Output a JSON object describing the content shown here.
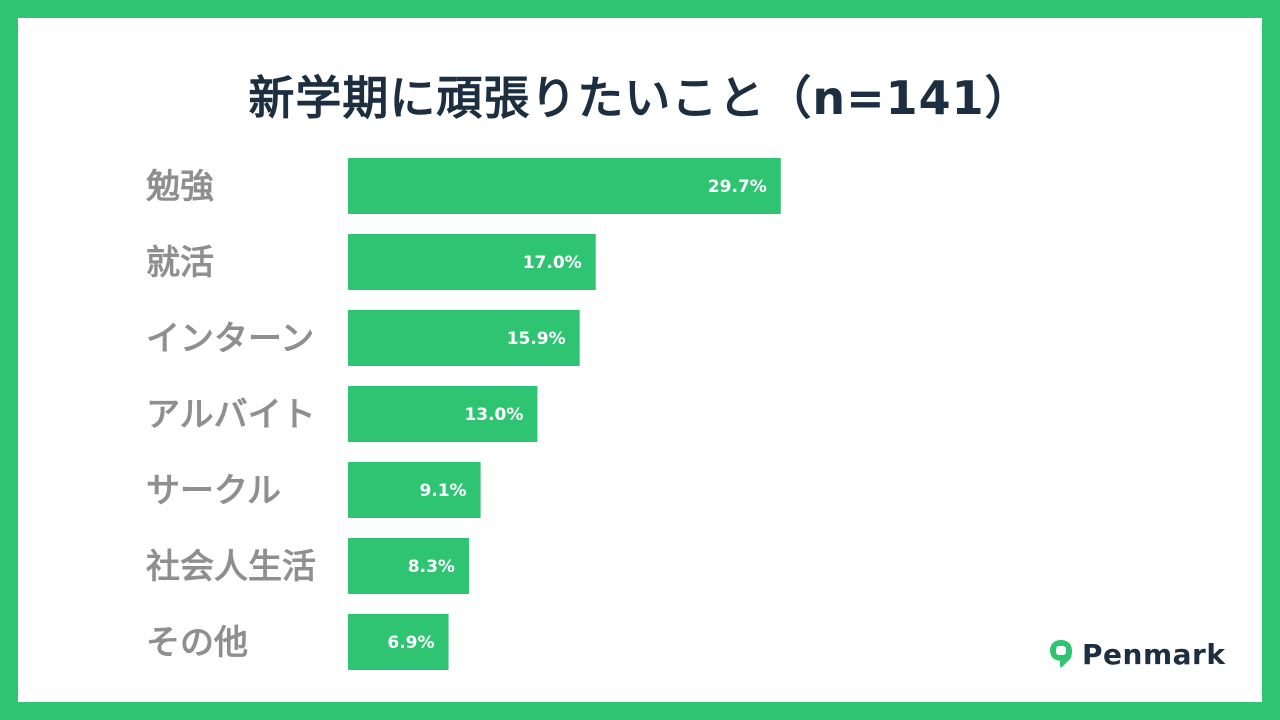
{
  "chart_data": {
    "type": "bar",
    "orientation": "horizontal",
    "title": "新学期に頑張りたいこと（n=141）",
    "categories": [
      "勉強",
      "就活",
      "インターン",
      "アルバイト",
      "サークル",
      "社会人生活",
      "その他"
    ],
    "values": [
      29.7,
      17.0,
      15.9,
      13.0,
      9.1,
      8.3,
      6.9
    ],
    "value_labels": [
      "29.7%",
      "17.0%",
      "15.9%",
      "13.0%",
      "9.1%",
      "8.3%",
      "6.9%"
    ],
    "unit": "%",
    "xlim": [
      0,
      70
    ],
    "bar_color": "#2ec472",
    "grid": false,
    "legend": "none"
  },
  "brand": {
    "name": "Penmark",
    "icon": "speech-bubble-icon",
    "color": "#2ec472"
  },
  "colors": {
    "frame": "#2ec472",
    "title": "#1c2e3f",
    "category_label": "#8f8f8f",
    "value_label": "#ffffff"
  }
}
